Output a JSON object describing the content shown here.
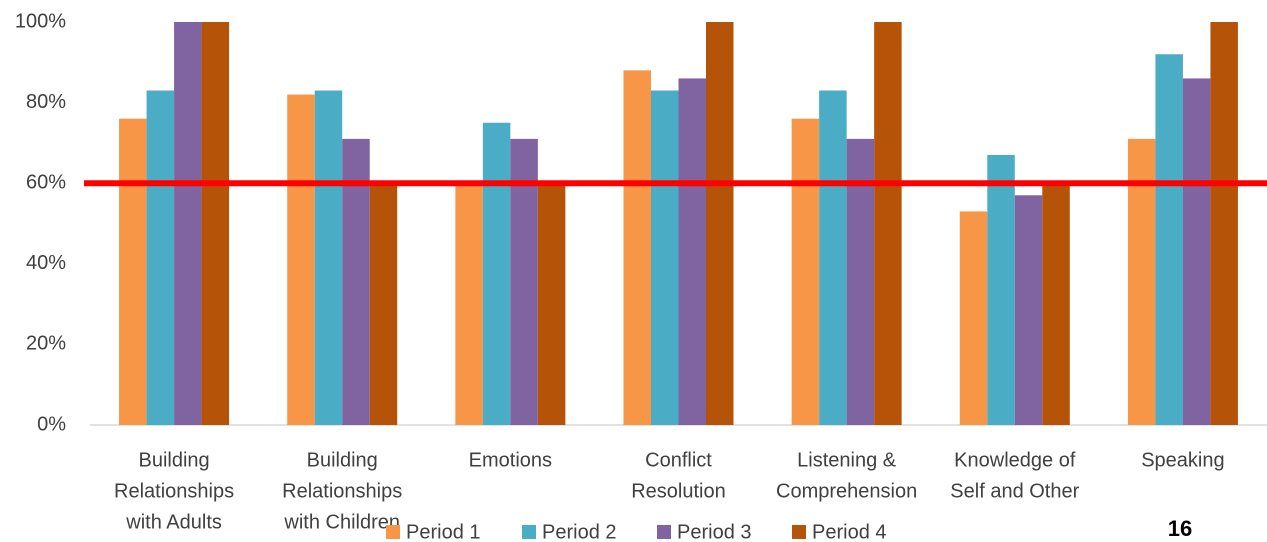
{
  "chart_data": {
    "type": "bar",
    "categories": [
      [
        "Building",
        "Relationships",
        "with Adults"
      ],
      [
        "Building",
        "Relationships",
        "with Children"
      ],
      [
        "Emotions"
      ],
      [
        "Conflict",
        "Resolution"
      ],
      [
        "Listening &",
        "Comprehension"
      ],
      [
        "Knowledge of",
        "Self and Other"
      ],
      [
        "Speaking"
      ]
    ],
    "series": [
      {
        "name": "Period 1",
        "color": "#f79646",
        "values": [
          76,
          82,
          60,
          88,
          76,
          53,
          71
        ]
      },
      {
        "name": "Period 2",
        "color": "#4bacc6",
        "values": [
          83,
          83,
          75,
          83,
          83,
          67,
          92
        ]
      },
      {
        "name": "Period 3",
        "color": "#8064a2",
        "values": [
          100,
          71,
          71,
          86,
          71,
          57,
          86
        ]
      },
      {
        "name": "Period 4",
        "color": "#b55409",
        "values": [
          100,
          60,
          60,
          100,
          100,
          60,
          100
        ]
      }
    ],
    "ylim": [
      0,
      100
    ],
    "yticks": [
      {
        "value": 0,
        "label": "0%"
      },
      {
        "value": 20,
        "label": "20%"
      },
      {
        "value": 40,
        "label": "40%"
      },
      {
        "value": 60,
        "label": "60%"
      },
      {
        "value": 80,
        "label": "80%"
      },
      {
        "value": 100,
        "label": "100%"
      }
    ],
    "threshold": 60,
    "threshold_color": "#ff0000",
    "legend": "bottom",
    "page_number": "16"
  }
}
